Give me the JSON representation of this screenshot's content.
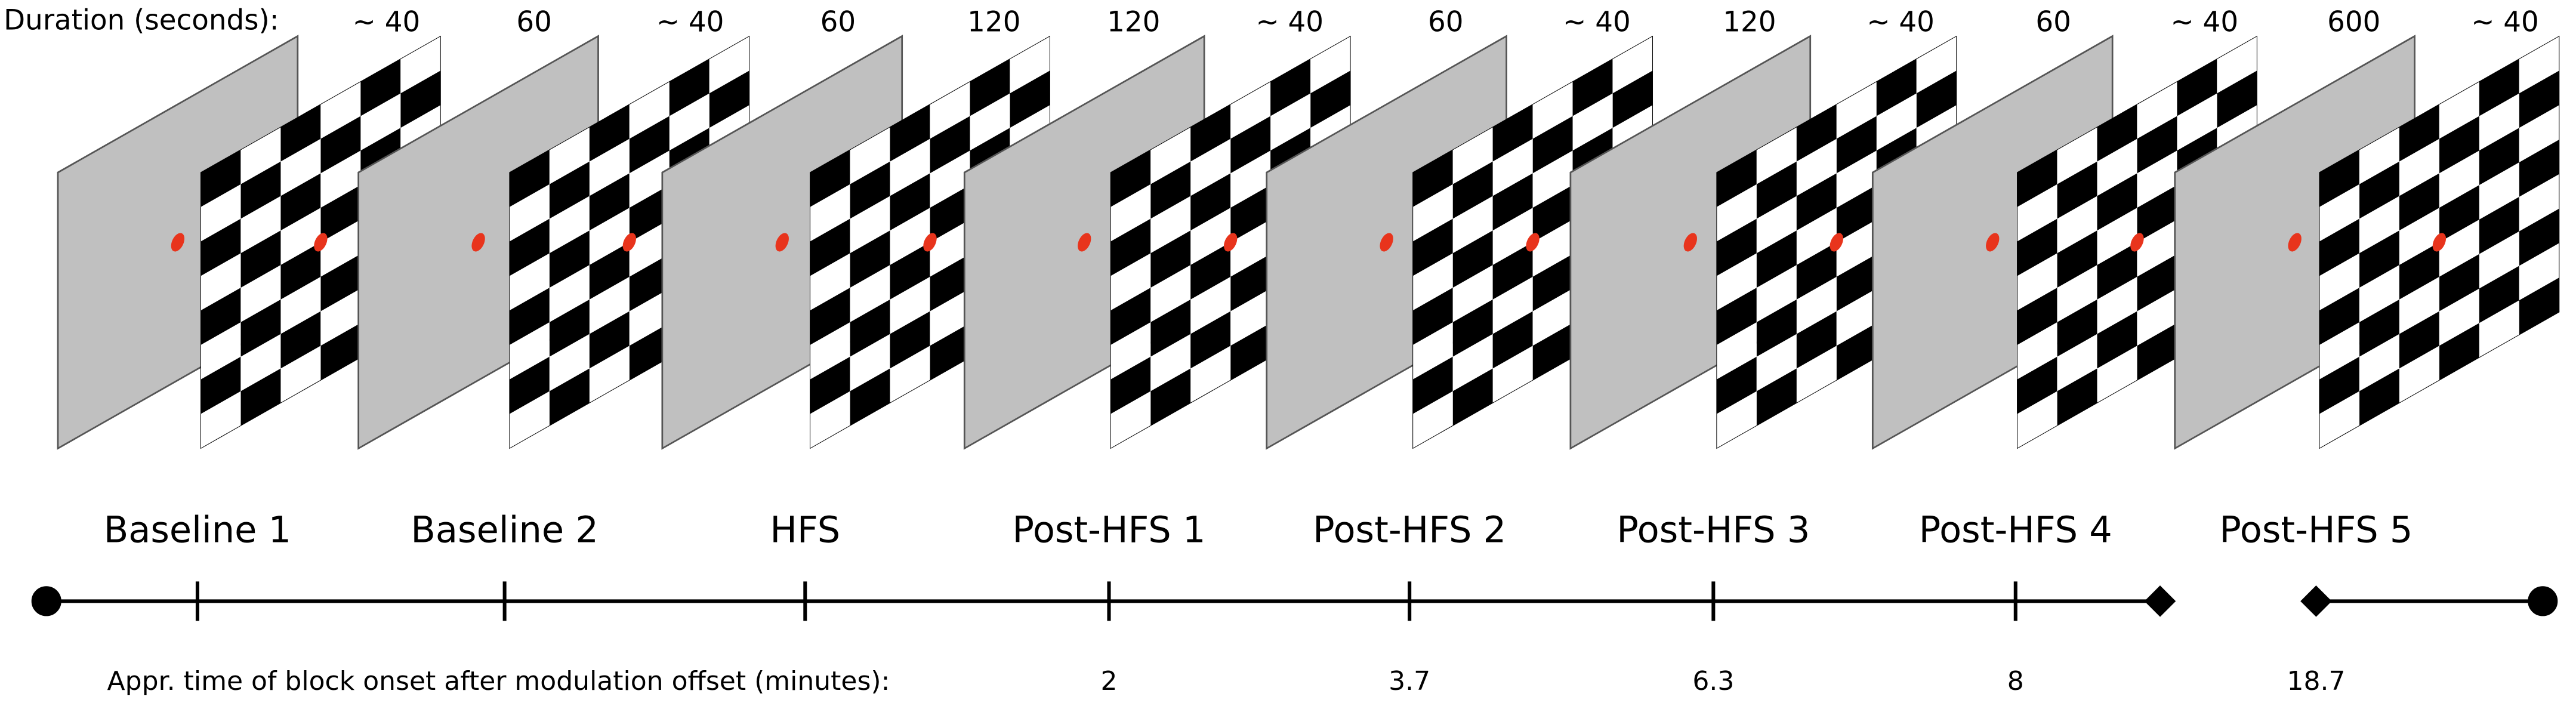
{
  "header": {
    "label": "Duration (seconds):"
  },
  "durations": [
    "~ 40",
    "60",
    "~ 40",
    "60",
    "120",
    "120",
    "~ 40",
    "60",
    "~ 40",
    "120",
    "~ 40",
    "60",
    "~ 40",
    "600",
    "~ 40"
  ],
  "blocks": [
    "Baseline 1",
    "Baseline 2",
    "HFS",
    "Post-HFS 1",
    "Post-HFS 2",
    "Post-HFS 3",
    "Post-HFS 4",
    "Post-HFS 5"
  ],
  "timeline": {
    "label": "Appr. time of block onset after modulation offset (minutes):",
    "times": [
      null,
      null,
      null,
      "2",
      "3.7",
      "6.3",
      "8",
      "18.7"
    ]
  }
}
